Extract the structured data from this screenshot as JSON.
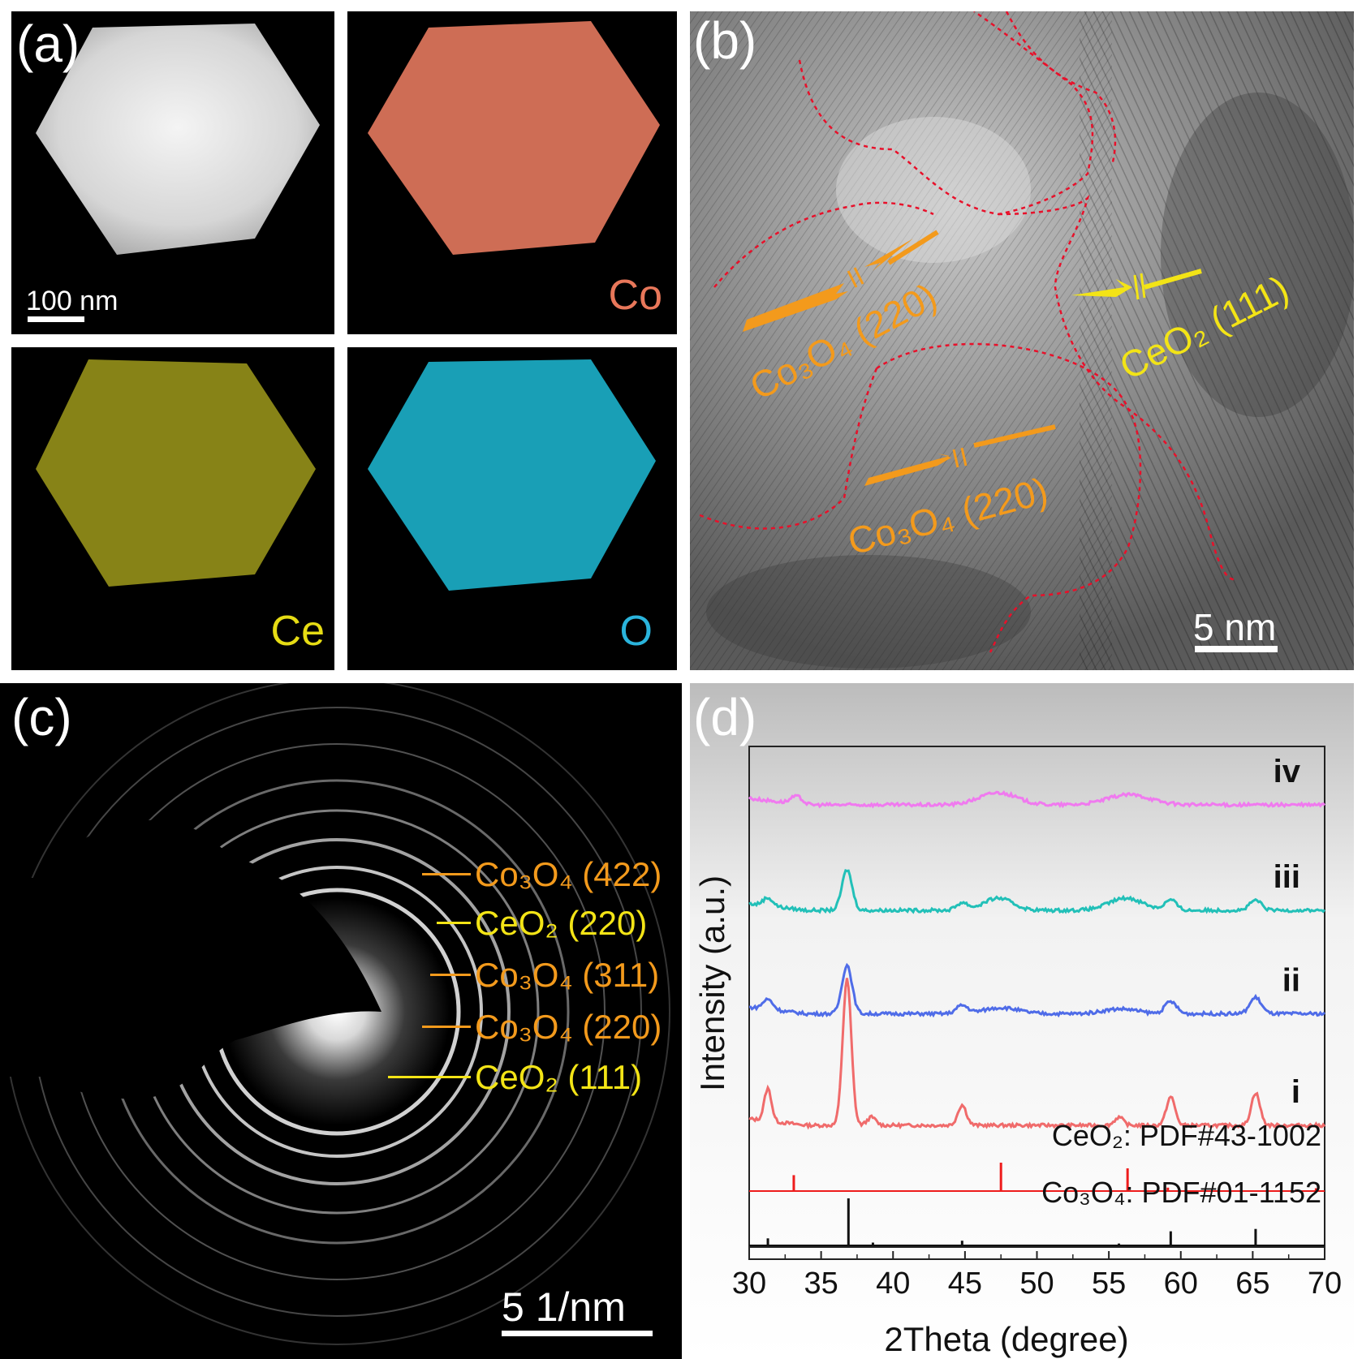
{
  "panel_a": {
    "label": "(a)",
    "scale_bar": "100 nm",
    "maps": [
      {
        "element": "Co",
        "color": "#e8775a"
      },
      {
        "element": "Ce",
        "color": "#e6dc14"
      },
      {
        "element": "O",
        "color": "#2ab4dc"
      }
    ]
  },
  "panel_b": {
    "label": "(b)",
    "scale_bar": "5 nm",
    "annotations": [
      {
        "text": "Co₃O₄ (220)",
        "color": "#f39a1c"
      },
      {
        "text": "Co₃O₄ (220)",
        "color": "#f39a1c"
      },
      {
        "text": "CeO₂ (111)",
        "color": "#f3e416"
      }
    ]
  },
  "panel_c": {
    "label": "(c)",
    "scale_bar": "5 1/nm",
    "rings": [
      {
        "text": "Co₃O₄ (422)",
        "color": "#f39a1c"
      },
      {
        "text": "CeO₂ (220)",
        "color": "#f3e416"
      },
      {
        "text": "Co₃O₄ (311)",
        "color": "#f39a1c"
      },
      {
        "text": "Co₃O₄ (220)",
        "color": "#f39a1c"
      },
      {
        "text": "CeO₂ (111)",
        "color": "#f3e416"
      }
    ]
  },
  "panel_d": {
    "label": "(d)",
    "chart_data": {
      "type": "line",
      "xlabel": "2Theta (degree)",
      "ylabel": "Intensity (a.u.)",
      "xlim": [
        30,
        70
      ],
      "xticks": [
        30,
        35,
        40,
        45,
        50,
        55,
        60,
        65,
        70
      ],
      "series": [
        {
          "name": "i",
          "color": "#f06b6b",
          "baseline": 0.27,
          "peaks": [
            [
              31.3,
              0.08,
              0.25
            ],
            [
              36.8,
              0.36,
              0.3
            ],
            [
              38.5,
              0.02,
              0.3
            ],
            [
              44.8,
              0.05,
              0.3
            ],
            [
              55.7,
              0.02,
              0.3
            ],
            [
              59.3,
              0.07,
              0.3
            ],
            [
              65.2,
              0.08,
              0.3
            ]
          ]
        },
        {
          "name": "ii",
          "color": "#4f6ce8",
          "baseline": 0.545,
          "peaks": [
            [
              31.3,
              0.025,
              0.35
            ],
            [
              36.8,
              0.12,
              0.35
            ],
            [
              44.8,
              0.02,
              0.4
            ],
            [
              47.5,
              0.015,
              1.2
            ],
            [
              55.8,
              0.012,
              1.2
            ],
            [
              59.3,
              0.03,
              0.4
            ],
            [
              65.2,
              0.04,
              0.4
            ]
          ]
        },
        {
          "name": "iii",
          "color": "#22c0b8",
          "baseline": 0.8,
          "peaks": [
            [
              31.3,
              0.02,
              0.35
            ],
            [
              36.8,
              0.1,
              0.35
            ],
            [
              44.8,
              0.018,
              0.4
            ],
            [
              47.3,
              0.03,
              1.0
            ],
            [
              56.2,
              0.03,
              1.2
            ],
            [
              59.3,
              0.025,
              0.4
            ],
            [
              65.2,
              0.025,
              0.4
            ]
          ]
        },
        {
          "name": "iv",
          "color": "#f07aef",
          "baseline": 1.06,
          "peaks": [
            [
              33.3,
              0.018,
              0.4
            ],
            [
              47.3,
              0.03,
              1.3
            ],
            [
              56.4,
              0.025,
              1.5
            ]
          ]
        }
      ],
      "references": [
        {
          "label": "CeO₂: PDF#43-1002",
          "color": "#ee1c1c",
          "sticks": [
            [
              33.1,
              0.28
            ],
            [
              47.5,
              0.5
            ],
            [
              56.3,
              0.4
            ],
            [
              59.1,
              0.06
            ],
            [
              69.4,
              0.05
            ]
          ]
        },
        {
          "label": "Co₃O₄: PDF#01-1152",
          "color": "#111111",
          "sticks": [
            [
              31.3,
              0.15
            ],
            [
              36.9,
              1.0
            ],
            [
              38.6,
              0.06
            ],
            [
              44.8,
              0.1
            ],
            [
              55.7,
              0.04
            ],
            [
              59.3,
              0.3
            ],
            [
              65.2,
              0.35
            ]
          ]
        }
      ]
    }
  }
}
